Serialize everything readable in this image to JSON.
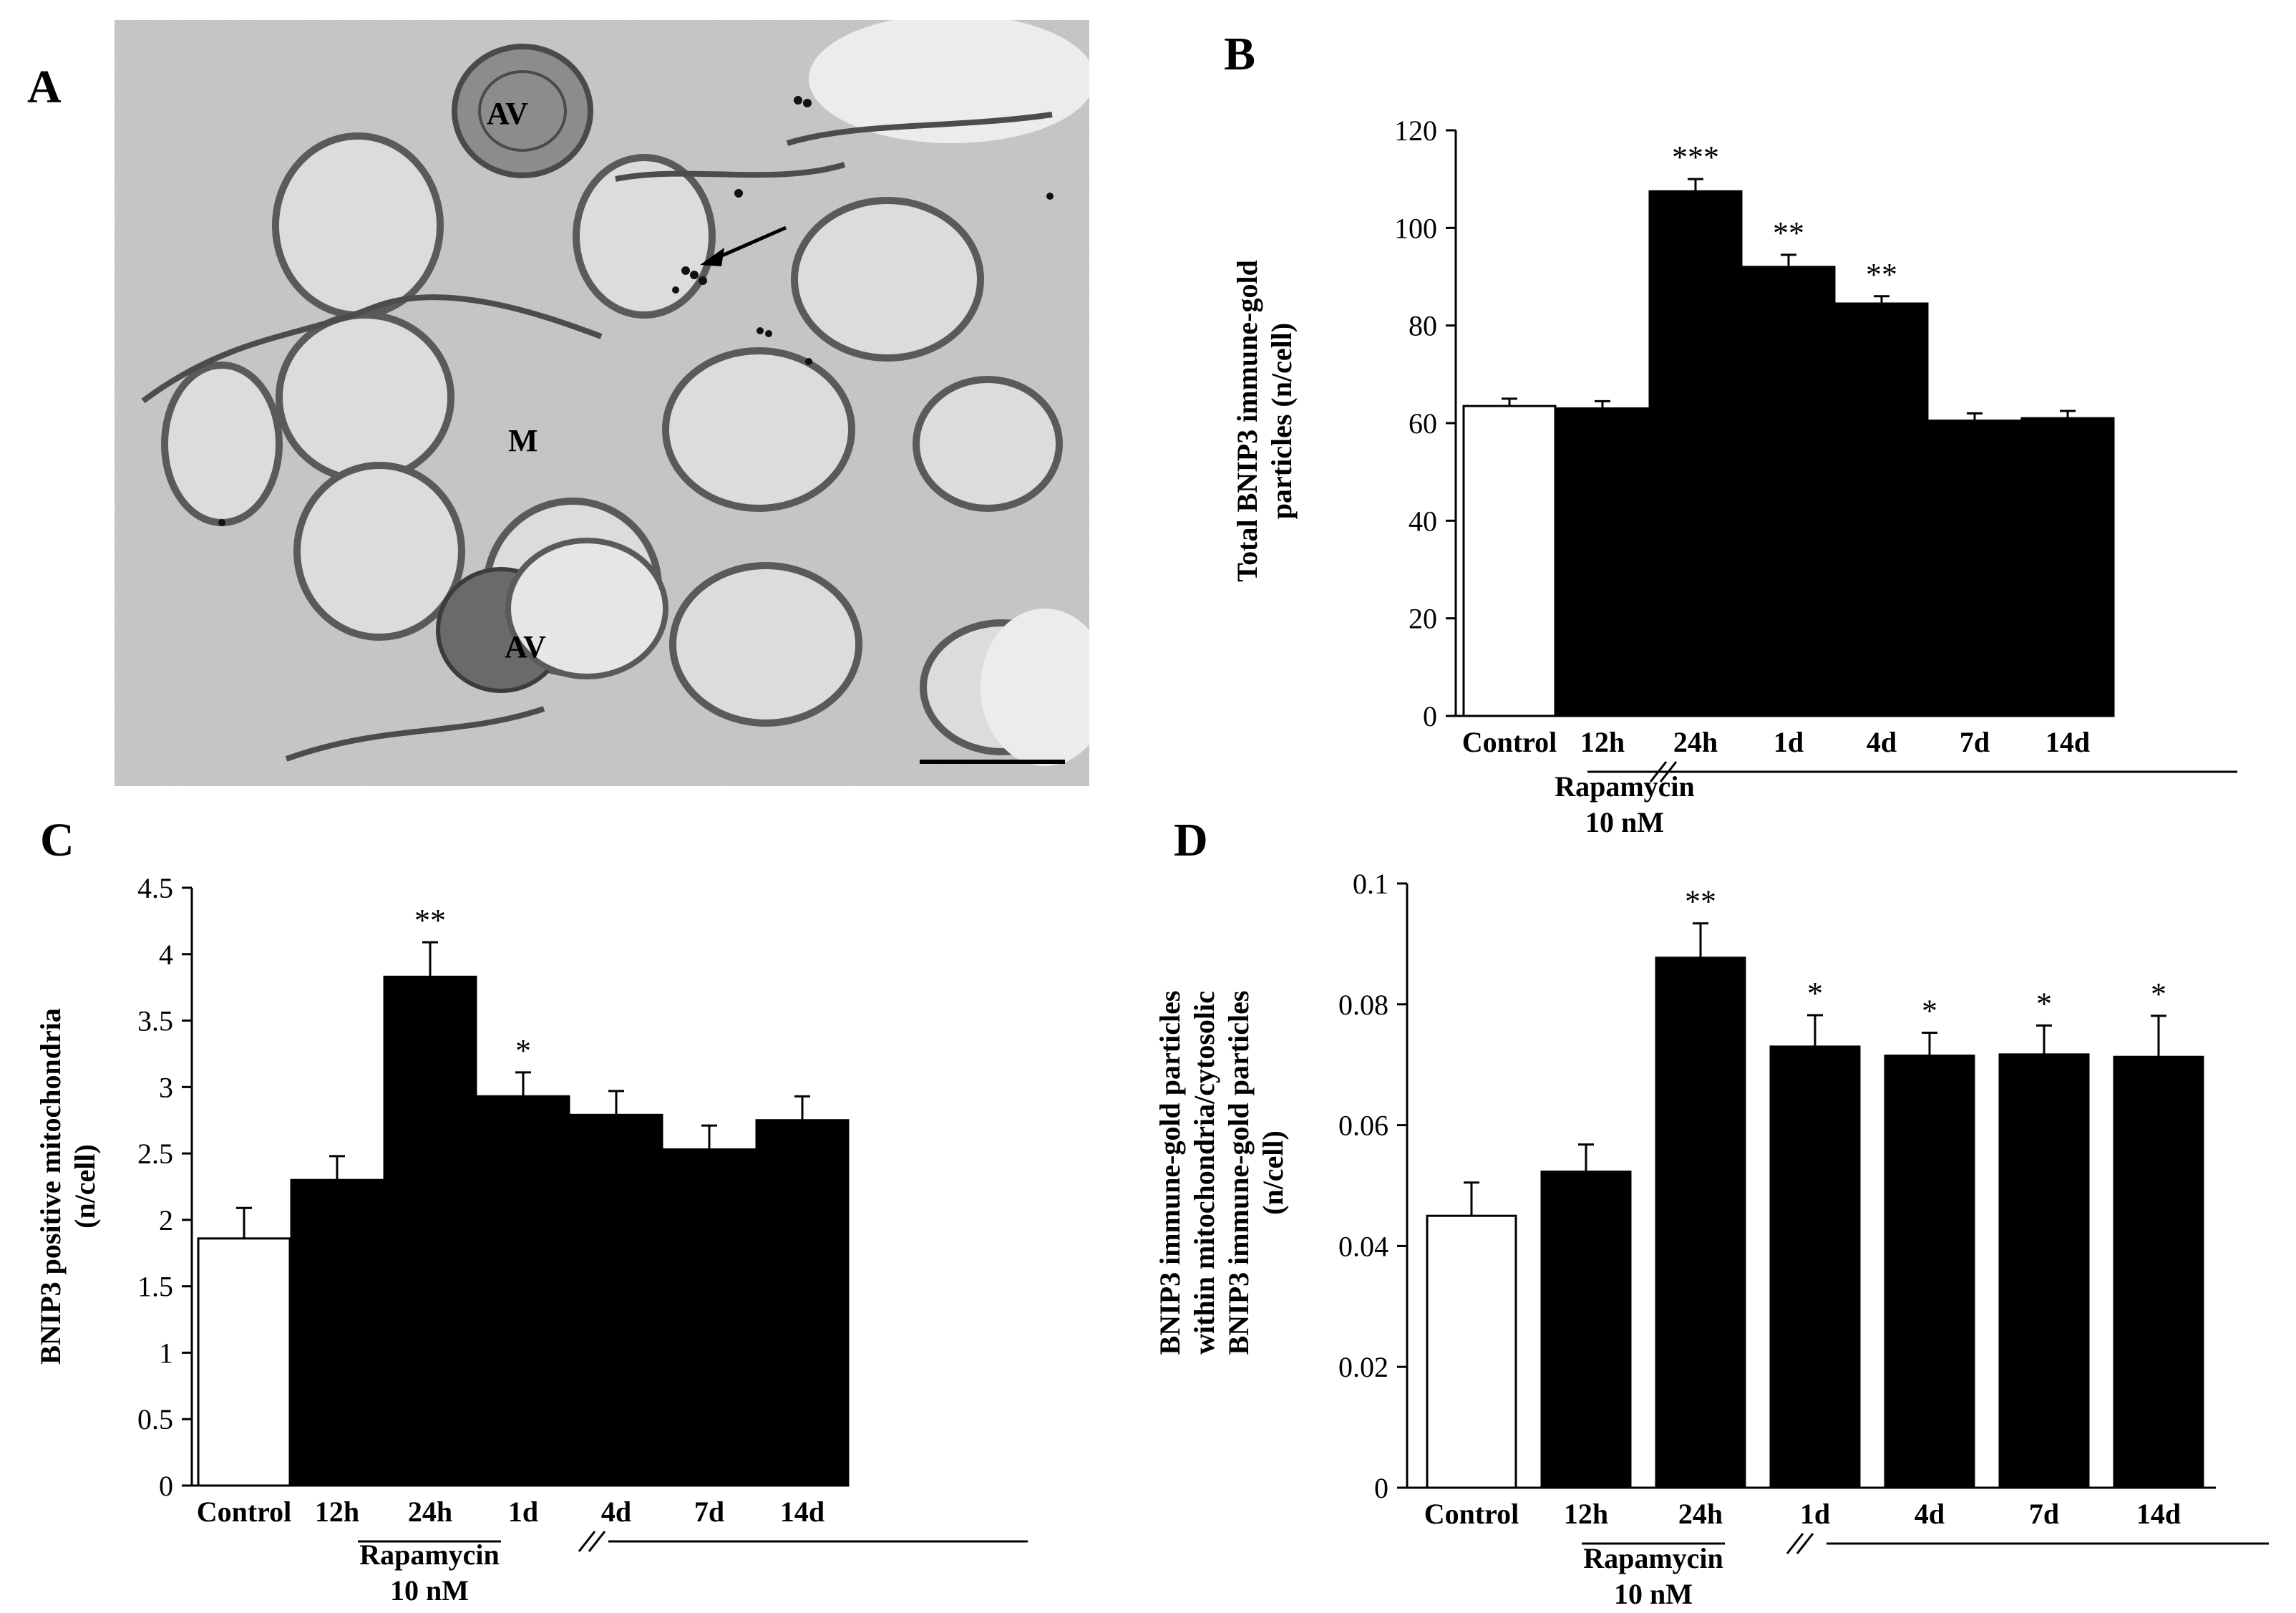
{
  "panels": {
    "A": {
      "letter": "A",
      "labels": [
        "AV",
        "M",
        "AV"
      ]
    }
  },
  "chart_data": [
    {
      "panel": "B",
      "type": "bar",
      "categories": [
        "Control",
        "12h",
        "24h",
        "1d",
        "4d",
        "7d",
        "14d"
      ],
      "values": [
        63.5,
        63,
        107.5,
        92,
        84.5,
        60.5,
        61
      ],
      "errors": [
        1.5,
        1.5,
        2.5,
        2.5,
        1.5,
        1.5,
        1.5
      ],
      "significance": [
        "",
        "",
        "***",
        "**",
        "**",
        "",
        ""
      ],
      "fills": [
        "#ffffff",
        "#000000",
        "#000000",
        "#000000",
        "#000000",
        "#000000",
        "#000000"
      ],
      "ylim": [
        0,
        120
      ],
      "yticks": [
        "0",
        "20",
        "40",
        "60",
        "80",
        "100",
        "120"
      ],
      "ylabel_lines": [
        "Total BNIP3 immune-gold",
        "particles  (n/cell)"
      ],
      "group_label": [
        "Rapamycin",
        "10 nM"
      ],
      "grid": false
    },
    {
      "panel": "C",
      "type": "bar",
      "categories": [
        "Control",
        "12h",
        "24h",
        "1d",
        "4d",
        "7d",
        "14d"
      ],
      "values": [
        1.86,
        2.3,
        3.83,
        2.93,
        2.79,
        2.53,
        2.75
      ],
      "errors": [
        0.23,
        0.18,
        0.26,
        0.18,
        0.18,
        0.18,
        0.18
      ],
      "significance": [
        "",
        "",
        "**",
        "*",
        "",
        "",
        ""
      ],
      "fills": [
        "#ffffff",
        "#000000",
        "#000000",
        "#000000",
        "#000000",
        "#000000",
        "#000000"
      ],
      "ylim": [
        0,
        4.5
      ],
      "yticks": [
        "0",
        "0.5",
        "1",
        "1.5",
        "2",
        "2.5",
        "3",
        "3.5",
        "4",
        "4.5"
      ],
      "ylabel_lines": [
        "BNIP3 positive mitochondria",
        "(n/cell)"
      ],
      "group_label": [
        "Rapamycin",
        "10 nM"
      ],
      "grid": false
    },
    {
      "panel": "D",
      "type": "bar",
      "categories": [
        "Control",
        "12h",
        "24h",
        "1d",
        "4d",
        "7d",
        "14d"
      ],
      "values": [
        0.045,
        0.0523,
        0.0877,
        0.073,
        0.0715,
        0.0717,
        0.0713
      ],
      "errors": [
        0.0055,
        0.0045,
        0.0057,
        0.0052,
        0.0038,
        0.0048,
        0.0068
      ],
      "significance": [
        "",
        "",
        "**",
        "*",
        "*",
        "*",
        "*"
      ],
      "fills": [
        "#ffffff",
        "#000000",
        "#000000",
        "#000000",
        "#000000",
        "#000000",
        "#000000"
      ],
      "ylim": [
        0,
        0.1
      ],
      "yticks": [
        "0",
        "0.02",
        "0.04",
        "0.06",
        "0.08",
        "0.1"
      ],
      "ylabel_lines": [
        "BNIP3 immune-gold particles",
        "within  mitochondria/cytosolic",
        "BNIP3 immune-gold particles",
        "(n/cell)"
      ],
      "group_label": [
        "Rapamycin",
        "10 nM"
      ],
      "grid": false
    }
  ]
}
